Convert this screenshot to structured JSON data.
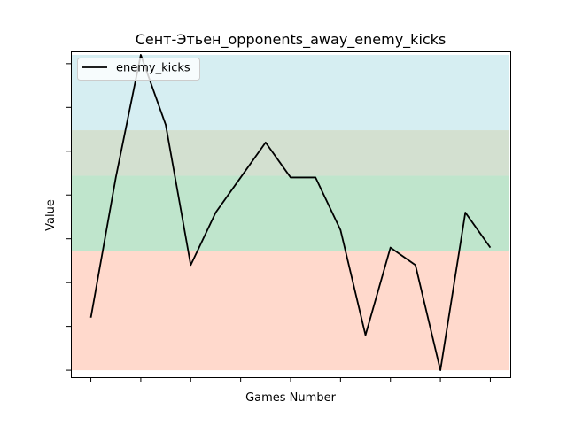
{
  "chart_data": {
    "type": "line",
    "title": "Сент-Этьен_opponents_away_enemy_kicks",
    "xlabel": "Games Number",
    "ylabel": "Value",
    "grid": false,
    "legend_position": "top-left",
    "x": [
      1,
      2,
      3,
      4,
      5,
      6,
      7,
      8,
      9,
      10,
      11,
      12,
      13,
      14,
      15,
      16,
      17
    ],
    "ylim": [
      -0.4,
      18.2
    ],
    "x_tick_labels_visible": false,
    "y_tick_labels_visible": false,
    "series": [
      {
        "name": "enemy_kicks",
        "color": "#000000",
        "values": [
          3,
          11,
          18,
          14,
          6,
          9,
          11,
          13,
          11,
          11,
          8,
          2,
          7,
          6,
          0,
          9,
          7
        ]
      }
    ],
    "bands": [
      {
        "from": 0,
        "to": 6.8,
        "color": "#ffd9cc"
      },
      {
        "from": 6.8,
        "to": 11.1,
        "color": "#bfe5cc"
      },
      {
        "from": 11.1,
        "to": 13.7,
        "color": "#d3e0d0"
      },
      {
        "from": 13.7,
        "to": 18,
        "color": "#d6eef2"
      }
    ]
  }
}
